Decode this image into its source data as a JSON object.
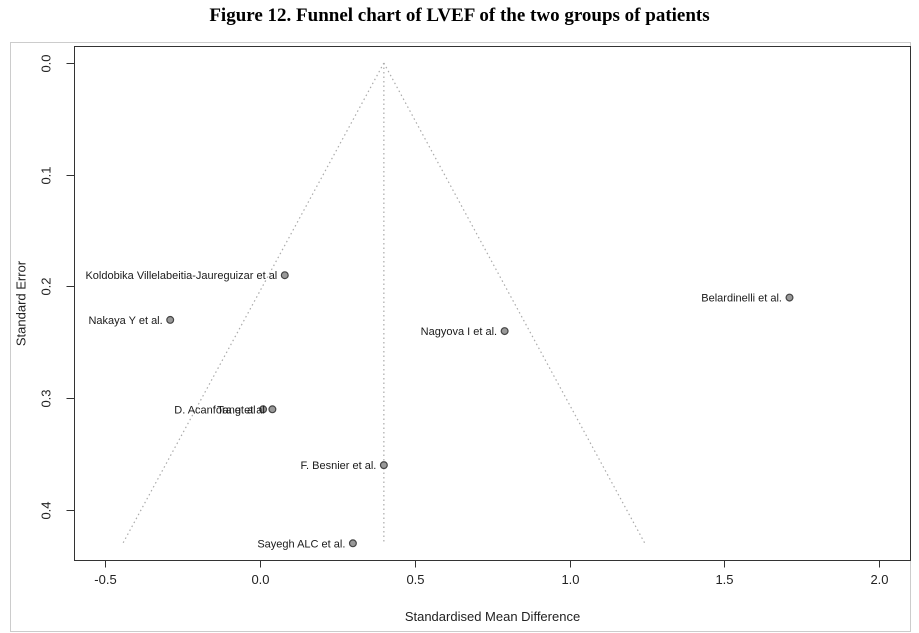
{
  "title": "Figure 12. Funnel chart of LVEF of the two groups of patients",
  "chart_data": {
    "type": "scatter",
    "subtype": "funnel-plot",
    "xlabel": "Standardised Mean Difference",
    "ylabel": "Standard Error",
    "x_ticks": [
      {
        "v": -0.5,
        "label": "-0.5"
      },
      {
        "v": 0.0,
        "label": "0.0"
      },
      {
        "v": 0.5,
        "label": "0.5"
      },
      {
        "v": 1.0,
        "label": "1.0"
      },
      {
        "v": 1.5,
        "label": "1.5"
      },
      {
        "v": 2.0,
        "label": "2.0"
      }
    ],
    "y_ticks": [
      {
        "v": 0.0,
        "label": "0.0"
      },
      {
        "v": 0.1,
        "label": "0.1"
      },
      {
        "v": 0.2,
        "label": "0.2"
      },
      {
        "v": 0.3,
        "label": "0.3"
      },
      {
        "v": 0.4,
        "label": "0.4"
      }
    ],
    "xlim": [
      -0.6,
      2.1
    ],
    "ylim": [
      0.0,
      0.445
    ],
    "y_axis_inverted": true,
    "grid": false,
    "legend": "none",
    "funnel": {
      "center_smd": 0.4,
      "se_multiplier": 1.96,
      "max_se": 0.43,
      "line_style": "dotted"
    },
    "points": [
      {
        "label": "Koldobika Villelabeitia-Jaureguizar et al",
        "smd": 0.08,
        "se": 0.19
      },
      {
        "label": "Belardinelli et al.",
        "smd": 1.71,
        "se": 0.21
      },
      {
        "label": "Nakaya Y et al.",
        "smd": -0.29,
        "se": 0.23
      },
      {
        "label": "Nagyova I et al.",
        "smd": 0.79,
        "se": 0.24
      },
      {
        "label": "D. Acanfora et al",
        "smd": 0.01,
        "se": 0.31
      },
      {
        "label": "Tang et al",
        "smd": 0.04,
        "se": 0.31
      },
      {
        "label": "F. Besnier et al.",
        "smd": 0.4,
        "se": 0.36
      },
      {
        "label": "Sayegh ALC et al.",
        "smd": 0.3,
        "se": 0.43
      }
    ],
    "colors": {
      "axis": "#333333",
      "tick_label": "#222222",
      "study_label": "#1a1a1a",
      "point_fill": "#999999",
      "point_stroke": "#444444",
      "funnel_line": "#aaaaaa",
      "frame": "#cccccc",
      "background": "#ffffff"
    }
  }
}
